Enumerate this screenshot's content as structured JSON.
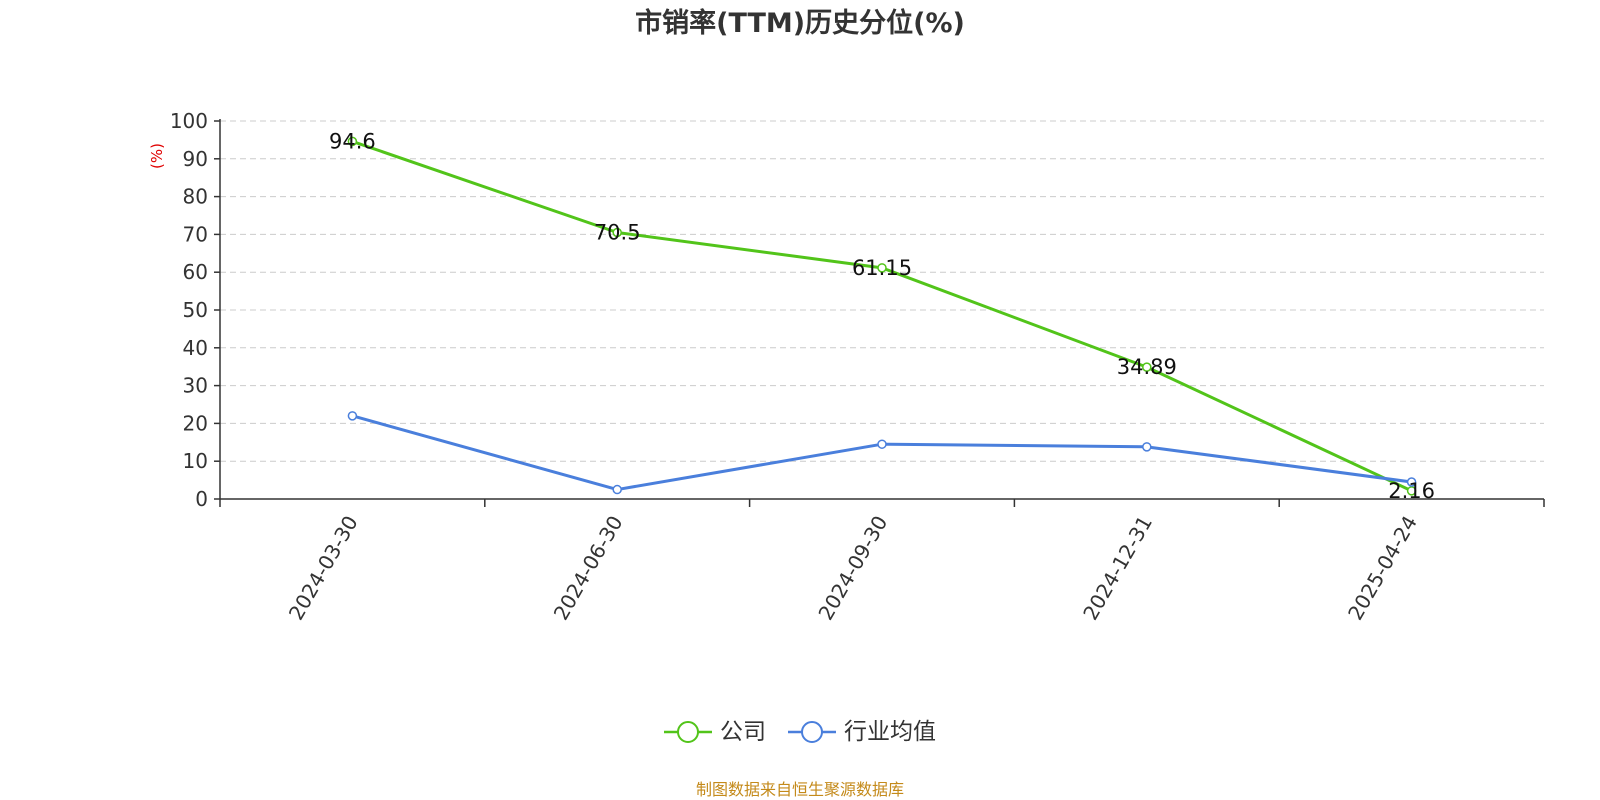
{
  "chart_data": {
    "type": "line",
    "title": "市销率(TTM)历史分位(%)",
    "ylabel": "(%)",
    "xlabel": "",
    "ylim": [
      0,
      100
    ],
    "yticks": [
      0,
      10,
      20,
      30,
      40,
      50,
      60,
      70,
      80,
      90,
      100
    ],
    "grid": true,
    "legend_position": "bottom-center",
    "categories": [
      "2024-03-30",
      "2024-06-30",
      "2024-09-30",
      "2024-12-31",
      "2025-04-24"
    ],
    "series": [
      {
        "name": "公司",
        "color": "#52c41a",
        "values": [
          94.6,
          70.5,
          61.15,
          34.89,
          2.16
        ],
        "labels": [
          "94.6",
          "70.5",
          "61.15",
          "34.89",
          "2.16"
        ]
      },
      {
        "name": "行业均值",
        "color": "#4a7fdc",
        "values": [
          22.0,
          2.5,
          14.5,
          13.8,
          4.5
        ]
      }
    ]
  },
  "source_text": "制图数据来自恒生聚源数据库"
}
